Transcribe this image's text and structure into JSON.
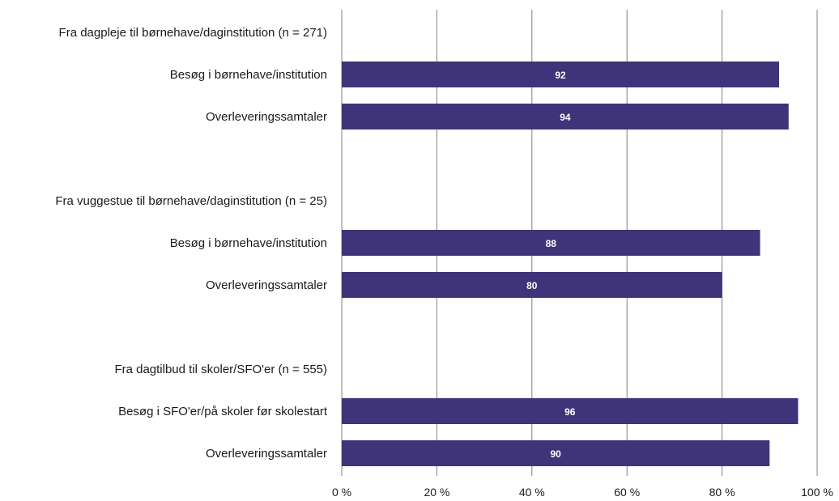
{
  "chart_data": {
    "type": "bar",
    "orientation": "horizontal",
    "title": "",
    "xlabel": "",
    "ylabel": "",
    "xlim": [
      0,
      100
    ],
    "grid": true,
    "bar_color": "#3f3479",
    "label_color": "#ffffff",
    "ticks": [
      "0 %",
      "20 %",
      "40 %",
      "60 %",
      "80 %",
      "100 %"
    ],
    "tick_values": [
      0,
      20,
      40,
      60,
      80,
      100
    ],
    "rows": [
      {
        "label": "Fra dagpleje til børnehave/daginstitution (n = 271)",
        "kind": "header"
      },
      {
        "label": "Besøg i børnehave/institution",
        "kind": "bar",
        "value": 92
      },
      {
        "label": "Overleveringssamtaler",
        "kind": "bar",
        "value": 94
      },
      {
        "label": "",
        "kind": "gap"
      },
      {
        "label": "Fra vuggestue til børnehave/daginstitution (n = 25)",
        "kind": "header"
      },
      {
        "label": "Besøg i børnehave/institution",
        "kind": "bar",
        "value": 88
      },
      {
        "label": "Overleveringssamtaler",
        "kind": "bar",
        "value": 80
      },
      {
        "label": "",
        "kind": "gap"
      },
      {
        "label": "Fra dagtilbud til skoler/SFO'er (n = 555)",
        "kind": "header"
      },
      {
        "label": "Besøg i SFO'er/på skoler før skolestart",
        "kind": "bar",
        "value": 96
      },
      {
        "label": "Overleveringssamtaler",
        "kind": "bar",
        "value": 90
      }
    ]
  }
}
